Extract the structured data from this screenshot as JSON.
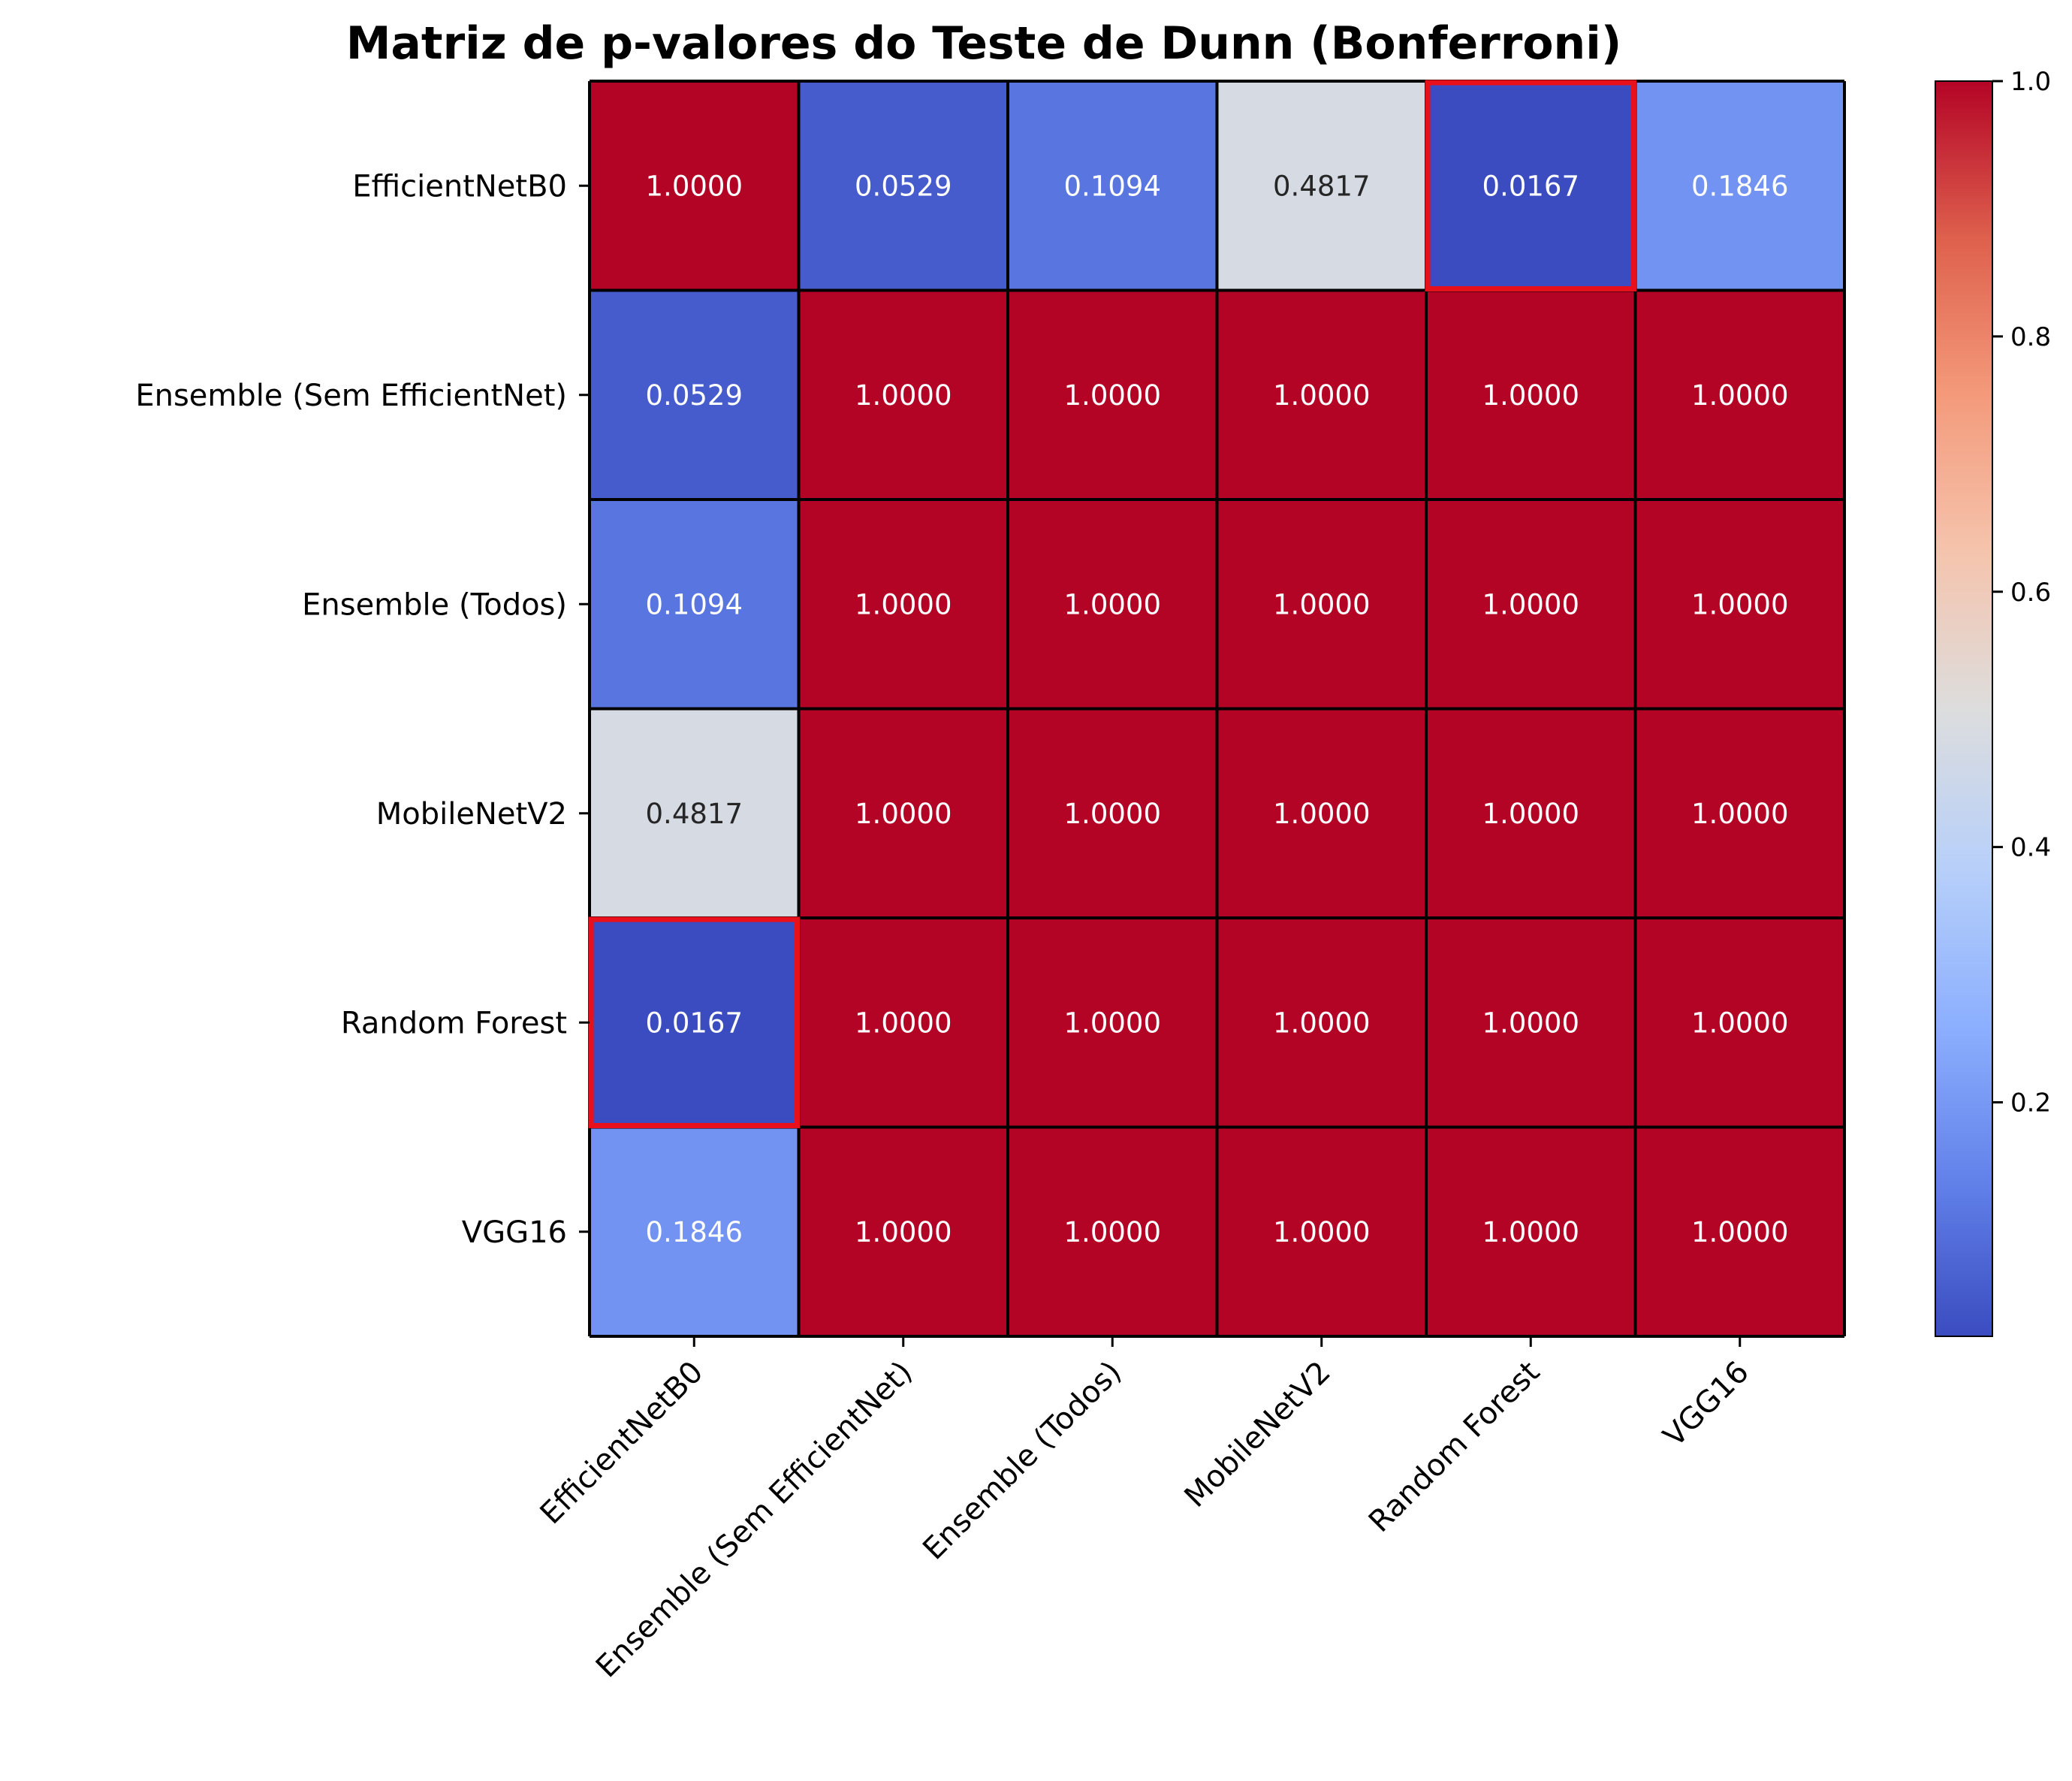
{
  "chart_data": {
    "type": "heatmap",
    "title": "Matriz de p-valores do Teste de Dunn (Bonferroni)",
    "xlabel": "",
    "ylabel": "",
    "row_labels": [
      "EfficientNetB0",
      "Ensemble (Sem EfficientNet)",
      "Ensemble (Todos)",
      "MobileNetV2",
      "Random Forest",
      "VGG16"
    ],
    "col_labels": [
      "EfficientNetB0",
      "Ensemble (Sem EfficientNet)",
      "Ensemble (Todos)",
      "MobileNetV2",
      "Random Forest",
      "VGG16"
    ],
    "values": [
      [
        1.0,
        0.0529,
        0.1094,
        0.4817,
        0.0167,
        0.1846
      ],
      [
        0.0529,
        1.0,
        1.0,
        1.0,
        1.0,
        1.0
      ],
      [
        0.1094,
        1.0,
        1.0,
        1.0,
        1.0,
        1.0
      ],
      [
        0.4817,
        1.0,
        1.0,
        1.0,
        1.0,
        1.0
      ],
      [
        0.0167,
        1.0,
        1.0,
        1.0,
        1.0,
        1.0
      ],
      [
        0.1846,
        1.0,
        1.0,
        1.0,
        1.0,
        1.0
      ]
    ],
    "cell_labels": [
      [
        "1.0000",
        "0.0529",
        "0.1094",
        "0.4817",
        "0.0167",
        "0.1846"
      ],
      [
        "0.0529",
        "1.0000",
        "1.0000",
        "1.0000",
        "1.0000",
        "1.0000"
      ],
      [
        "0.1094",
        "1.0000",
        "1.0000",
        "1.0000",
        "1.0000",
        "1.0000"
      ],
      [
        "0.4817",
        "1.0000",
        "1.0000",
        "1.0000",
        "1.0000",
        "1.0000"
      ],
      [
        "0.0167",
        "1.0000",
        "1.0000",
        "1.0000",
        "1.0000",
        "1.0000"
      ],
      [
        "0.1846",
        "1.0000",
        "1.0000",
        "1.0000",
        "1.0000",
        "1.0000"
      ]
    ],
    "highlighted_cells": [
      [
        0,
        4
      ],
      [
        4,
        0
      ]
    ],
    "highlight_color": "#e8101a",
    "colormap": "coolwarm",
    "colorbar": {
      "range": [
        0.0167,
        1.0
      ],
      "ticks": [
        0.2,
        0.4,
        0.6,
        0.8,
        1.0
      ],
      "tick_labels": [
        "0.2",
        "0.4",
        "0.6",
        "0.8",
        "1.0"
      ],
      "placement": "right"
    },
    "grid": true,
    "legend": "none"
  }
}
